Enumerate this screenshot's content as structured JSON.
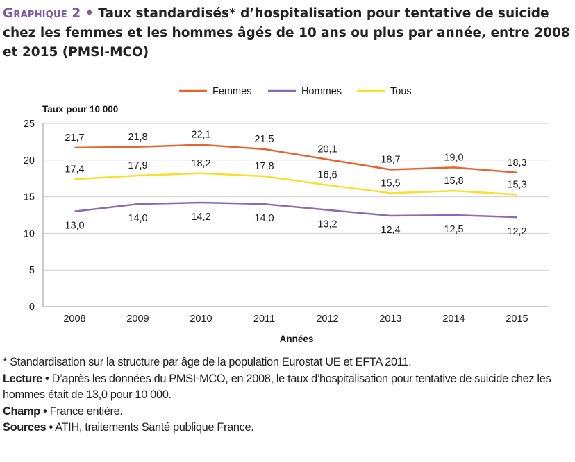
{
  "header": {
    "label": "Graphique 2",
    "bullet": "•",
    "title": "Taux standardisés* d’hospitalisation pour tentative de suicide chez les femmes et les hommes âgés de 10 ans ou plus par année, entre 2008 et 2015 (PMSI-MCO)"
  },
  "chart_data": {
    "type": "line",
    "ylabel": "Taux pour 10 000",
    "xlabel": "Années",
    "ylim": [
      0,
      25
    ],
    "yticks": [
      0,
      5,
      10,
      15,
      20,
      25
    ],
    "grid": true,
    "legend_position": "top",
    "x": [
      "2008",
      "2009",
      "2010",
      "2011",
      "2012",
      "2013",
      "2014",
      "2015"
    ],
    "series": [
      {
        "name": "Femmes",
        "color": "#e8642c",
        "values": [
          21.7,
          21.8,
          22.1,
          21.5,
          20.1,
          18.7,
          19.0,
          18.3
        ],
        "labels": [
          "21,7",
          "21,8",
          "22,1",
          "21,5",
          "20,1",
          "18,7",
          "19,0",
          "18,3"
        ]
      },
      {
        "name": "Hommes",
        "color": "#8a6bb3",
        "values": [
          13.0,
          14.0,
          14.2,
          14.0,
          13.2,
          12.4,
          12.5,
          12.2
        ],
        "labels": [
          "13,0",
          "14,0",
          "14,2",
          "14,0",
          "13,2",
          "12,4",
          "12,5",
          "12,2"
        ]
      },
      {
        "name": "Tous",
        "color": "#f5e12a",
        "values": [
          17.4,
          17.9,
          18.2,
          17.8,
          16.6,
          15.5,
          15.8,
          15.3
        ],
        "labels": [
          "17,4",
          "17,9",
          "18,2",
          "17,8",
          "16,6",
          "15,5",
          "15,8",
          "15,3"
        ]
      }
    ]
  },
  "notes": {
    "footnote": "* Standardisation sur la structure par âge de la population Eurostat UE et EFTA 2011.",
    "lecture_label": "Lecture",
    "lecture_text": "D’après les données du PMSI-MCO, en 2008, le taux d’hospitalisation pour tentative de suicide chez les hommes était de 13,0 pour 10 000.",
    "champ_label": "Champ",
    "champ_text": "France entière.",
    "sources_label": "Sources",
    "sources_text": "ATIH, traitements Santé publique France.",
    "separator": "•"
  }
}
